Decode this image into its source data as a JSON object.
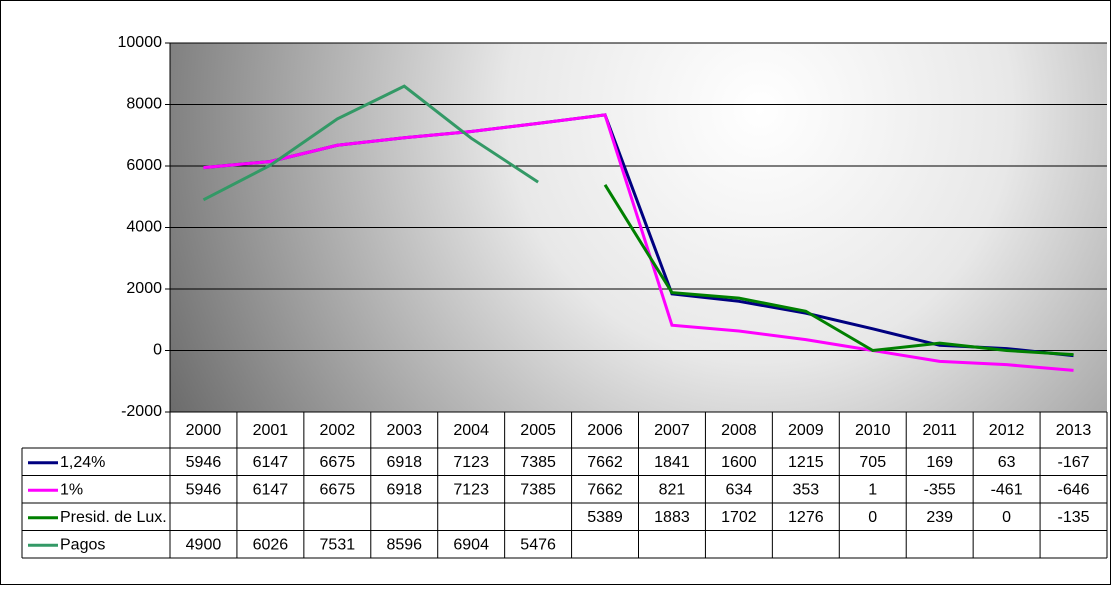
{
  "chart_data": {
    "type": "line",
    "categories": [
      "2000",
      "2001",
      "2002",
      "2003",
      "2004",
      "2005",
      "2006",
      "2007",
      "2008",
      "2009",
      "2010",
      "2011",
      "2012",
      "2013"
    ],
    "series": [
      {
        "name": "1,24%",
        "color": "#000080",
        "values": [
          5946,
          6147,
          6675,
          6918,
          7123,
          7385,
          7662,
          1841,
          1600,
          1215,
          705,
          169,
          63,
          -167
        ]
      },
      {
        "name": "1%",
        "color": "#ff00ff",
        "values": [
          5946,
          6147,
          6675,
          6918,
          7123,
          7385,
          7662,
          821,
          634,
          353,
          1,
          -355,
          -461,
          -646
        ]
      },
      {
        "name": "Presid. de Lux.",
        "color": "#008000",
        "values": [
          null,
          null,
          null,
          null,
          null,
          null,
          5389,
          1883,
          1702,
          1276,
          0,
          239,
          0,
          -135
        ]
      },
      {
        "name": "Pagos",
        "color": "#339966",
        "values": [
          4900,
          6026,
          7531,
          8596,
          6904,
          5476,
          null,
          null,
          null,
          null,
          null,
          null,
          null,
          null
        ]
      }
    ],
    "ylim": [
      -2000,
      10000
    ],
    "yticks": [
      -2000,
      0,
      2000,
      4000,
      6000,
      8000,
      10000
    ],
    "grid": true,
    "data_table": true
  }
}
